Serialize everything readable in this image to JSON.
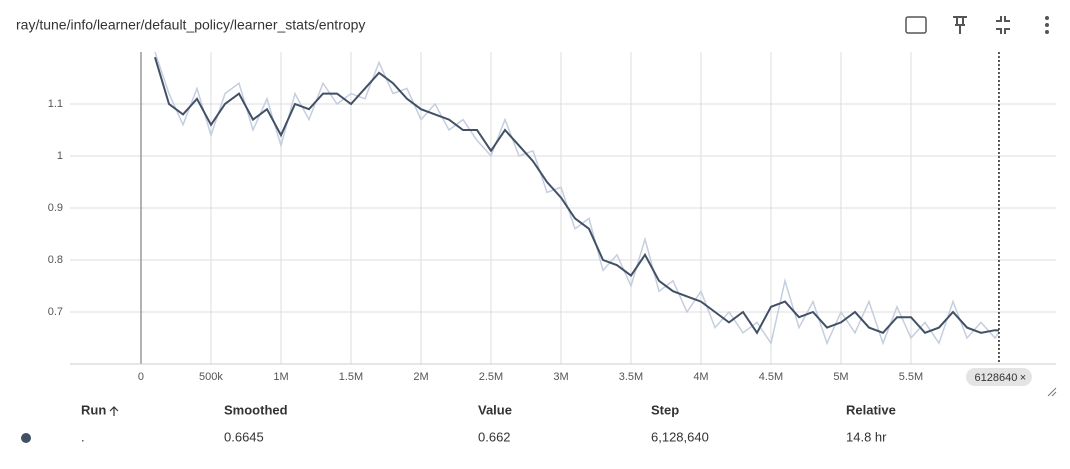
{
  "header": {
    "title": "ray/tune/info/learner/default_policy/learner_stats/entropy"
  },
  "chart_data": {
    "type": "line",
    "x": [
      100000,
      200000,
      300000,
      400000,
      500000,
      600000,
      700000,
      800000,
      900000,
      1000000,
      1100000,
      1200000,
      1300000,
      1400000,
      1500000,
      1600000,
      1700000,
      1800000,
      1900000,
      2000000,
      2100000,
      2200000,
      2300000,
      2400000,
      2500000,
      2600000,
      2700000,
      2800000,
      2900000,
      3000000,
      3100000,
      3200000,
      3300000,
      3400000,
      3500000,
      3600000,
      3700000,
      3800000,
      3900000,
      4000000,
      4100000,
      4200000,
      4300000,
      4400000,
      4500000,
      4600000,
      4700000,
      4800000,
      4900000,
      5000000,
      5100000,
      5200000,
      5300000,
      5400000,
      5500000,
      5600000,
      5700000,
      5800000,
      5900000,
      6000000,
      6100000,
      6128640
    ],
    "series": [
      {
        "color": "#c5cede",
        "values": [
          1.2,
          1.12,
          1.06,
          1.13,
          1.04,
          1.12,
          1.14,
          1.05,
          1.11,
          1.02,
          1.12,
          1.07,
          1.14,
          1.1,
          1.12,
          1.11,
          1.18,
          1.12,
          1.13,
          1.07,
          1.1,
          1.05,
          1.07,
          1.03,
          1.0,
          1.07,
          1.0,
          1.01,
          0.93,
          0.94,
          0.86,
          0.88,
          0.78,
          0.81,
          0.75,
          0.84,
          0.74,
          0.76,
          0.7,
          0.74,
          0.67,
          0.7,
          0.66,
          0.68,
          0.64,
          0.76,
          0.67,
          0.72,
          0.64,
          0.7,
          0.66,
          0.72,
          0.64,
          0.71,
          0.65,
          0.68,
          0.64,
          0.72,
          0.65,
          0.68,
          0.65,
          0.662
        ]
      },
      {
        "color": "#425066",
        "values": [
          1.19,
          1.1,
          1.08,
          1.11,
          1.06,
          1.1,
          1.12,
          1.07,
          1.09,
          1.04,
          1.1,
          1.09,
          1.12,
          1.12,
          1.1,
          1.13,
          1.16,
          1.14,
          1.11,
          1.09,
          1.08,
          1.07,
          1.05,
          1.05,
          1.01,
          1.05,
          1.02,
          0.99,
          0.95,
          0.92,
          0.88,
          0.86,
          0.8,
          0.79,
          0.77,
          0.81,
          0.76,
          0.74,
          0.73,
          0.72,
          0.7,
          0.68,
          0.7,
          0.66,
          0.71,
          0.72,
          0.69,
          0.7,
          0.67,
          0.68,
          0.7,
          0.67,
          0.66,
          0.69,
          0.69,
          0.66,
          0.67,
          0.7,
          0.67,
          0.66,
          0.665,
          0.6645
        ]
      }
    ],
    "xlim": [
      -507000,
      6536000
    ],
    "ylim": [
      0.6,
      1.2
    ],
    "xticks": [
      0,
      {
        "value": 500000,
        "label": "500k"
      },
      {
        "value": 1000000,
        "label": "1M"
      },
      {
        "value": 1500000,
        "label": "1.5M"
      },
      {
        "value": 2000000,
        "label": "2M"
      },
      {
        "value": 2500000,
        "label": "2.5M"
      },
      {
        "value": 3000000,
        "label": "3M"
      },
      {
        "value": 3500000,
        "label": "3.5M"
      },
      {
        "value": 4000000,
        "label": "4M"
      },
      {
        "value": 4500000,
        "label": "4.5M"
      },
      {
        "value": 5000000,
        "label": "5M"
      },
      {
        "value": 5500000,
        "label": "5.5M"
      }
    ],
    "yticks": [
      0.7,
      0.8,
      0.9,
      1,
      1.1
    ],
    "grid": true,
    "cursor": {
      "value": 6128640,
      "label": "6128640"
    }
  },
  "table": {
    "headers": [
      "Run",
      "Smoothed",
      "Value",
      "Step",
      "Relative"
    ],
    "rows": [
      [
        ".",
        "0.6645",
        "0.662",
        "6,128,640",
        "14.8 hr"
      ]
    ]
  }
}
